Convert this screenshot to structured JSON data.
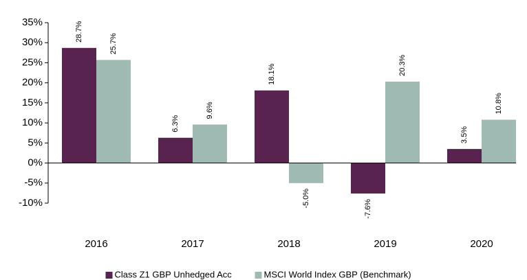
{
  "chart_data": {
    "type": "bar",
    "categories": [
      "2016",
      "2017",
      "2018",
      "2019",
      "2020"
    ],
    "series": [
      {
        "name": "Class Z1 GBP Unhedged Acc",
        "color": "#58234f",
        "values": [
          28.7,
          6.3,
          18.1,
          -7.6,
          3.5
        ],
        "value_labels": [
          "28.7%",
          "6.3%",
          "18.1%",
          "-7.6%",
          "3.5%"
        ]
      },
      {
        "name": "MSCI World Index GBP (Benchmark)",
        "color": "#9fbab3",
        "values": [
          25.7,
          9.6,
          -5.0,
          20.3,
          10.8
        ],
        "value_labels": [
          "25.7%",
          "9.6%",
          "-5.0%",
          "20.3%",
          "10.8%"
        ]
      }
    ],
    "ylim": [
      -10,
      35
    ],
    "yticks": [
      {
        "value": -10,
        "label": "-10%"
      },
      {
        "value": -5,
        "label": "-5%"
      },
      {
        "value": 0,
        "label": "0%"
      },
      {
        "value": 5,
        "label": "5%"
      },
      {
        "value": 10,
        "label": "10%"
      },
      {
        "value": 15,
        "label": "15%"
      },
      {
        "value": 20,
        "label": "20%"
      },
      {
        "value": 25,
        "label": "25%"
      },
      {
        "value": 30,
        "label": "30%"
      },
      {
        "value": 35,
        "label": "35%"
      }
    ],
    "grid": false,
    "legend": "bottom"
  }
}
